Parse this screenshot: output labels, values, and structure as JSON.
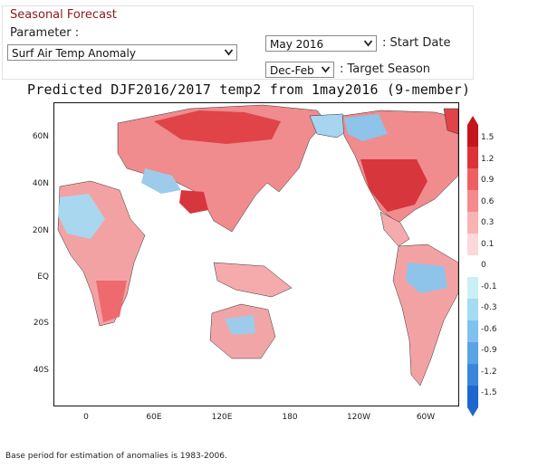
{
  "panel": {
    "title": "Seasonal Forecast",
    "parameter_label": "Parameter :",
    "parameter_value": "Surf Air Temp Anomaly",
    "start_date_value": "May 2016",
    "start_date_label": ": Start Date",
    "target_season_value": "Dec-Feb",
    "target_season_label": ": Target Season"
  },
  "figure": {
    "title": "Predicted DJF2016/2017 temp2 from 1may2016 (9-member)",
    "y_ticks": [
      "60N",
      "40N",
      "20N",
      "EQ",
      "20S",
      "40S"
    ],
    "x_ticks": [
      "0",
      "60E",
      "120E",
      "180",
      "120W",
      "60W"
    ],
    "colorbar_ticks": [
      "1.5",
      "1.2",
      "0.9",
      "0.6",
      "0.3",
      "0.1",
      "0",
      "-0.1",
      "-0.3",
      "-0.6",
      "-0.9",
      "-1.2",
      "-1.5"
    ],
    "colorbar_colors": [
      "#c6141e",
      "#dd3238",
      "#ee5f64",
      "#f5898c",
      "#f9b3b4",
      "#fcd9d9",
      "#ffffff",
      "#c9f0f5",
      "#a3dcf3",
      "#7fc2ee",
      "#5aa4e6",
      "#3b86dd",
      "#1f66d1"
    ]
  },
  "footnote": "Base period for estimation of anomalies is 1983-2006."
}
